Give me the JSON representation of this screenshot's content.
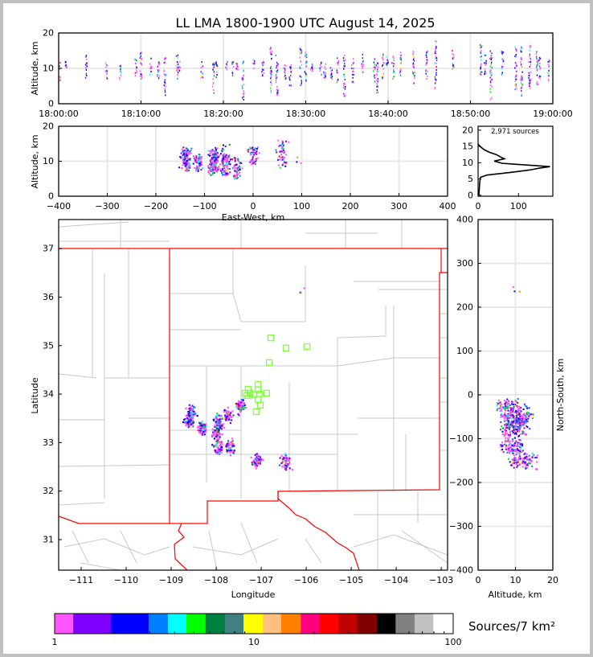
{
  "title": "LL LMA 1800-1900 UTC August 14, 2025",
  "labels": {
    "top_ylabel": "Altitude, km",
    "ew_ylabel": "Altitude, km",
    "ew_xlabel": "East-West, km",
    "map_xlabel": "Longitude",
    "map_ylabel": "Latitude",
    "ns_ylabel": "North-South, km",
    "ns_xlabel": "Altitude, km",
    "hist_annotation": "2,971 sources",
    "colorbar_label": "Sources/7 km²"
  },
  "chart_data": [
    {
      "type": "scatter",
      "panel": "time-height",
      "ylabel": "Altitude, km",
      "ylim": [
        0,
        20
      ],
      "xlim": [
        "18:00:00",
        "19:00:00"
      ],
      "xticks": [
        "18:00:00",
        "18:10:00",
        "18:20:00",
        "18:30:00",
        "18:40:00",
        "18:50:00",
        "19:00:00"
      ],
      "yticks": [
        "0",
        "10",
        "20"
      ],
      "grid": true,
      "columns_minute_zmin_zmax": [
        [
          0.1,
          6,
          12
        ],
        [
          0.9,
          10,
          13
        ],
        [
          3.4,
          7,
          14
        ],
        [
          5.8,
          7,
          12
        ],
        [
          7.5,
          7,
          11
        ],
        [
          9.4,
          7,
          13
        ],
        [
          10,
          7,
          15
        ],
        [
          11.2,
          8,
          13
        ],
        [
          12.1,
          7,
          13
        ],
        [
          12.9,
          2,
          13
        ],
        [
          14.4,
          7,
          14
        ],
        [
          14.7,
          9,
          12
        ],
        [
          17.4,
          7,
          12
        ],
        [
          18.8,
          3,
          12
        ],
        [
          19.2,
          7,
          12
        ],
        [
          20.4,
          9,
          12
        ],
        [
          21.1,
          8,
          12
        ],
        [
          21.7,
          9,
          13
        ],
        [
          22.4,
          1,
          13
        ],
        [
          23.7,
          10,
          13
        ],
        [
          24.8,
          7,
          12
        ],
        [
          25.8,
          3,
          16
        ],
        [
          26.5,
          2,
          14
        ],
        [
          27.5,
          7,
          12
        ],
        [
          28.1,
          5,
          11
        ],
        [
          29.4,
          5,
          16
        ],
        [
          30,
          5,
          15
        ],
        [
          30.7,
          9,
          12
        ],
        [
          31.8,
          8,
          12
        ],
        [
          32.3,
          7,
          12
        ],
        [
          33.1,
          6,
          11
        ],
        [
          33.9,
          6,
          13
        ],
        [
          34.7,
          1,
          14
        ],
        [
          35.7,
          6,
          13
        ],
        [
          36.9,
          8,
          14
        ],
        [
          38.3,
          6,
          13
        ],
        [
          38.7,
          2,
          12
        ],
        [
          39.4,
          7,
          14
        ],
        [
          39.9,
          9,
          15
        ],
        [
          40.6,
          7,
          15
        ],
        [
          41.5,
          8,
          15
        ],
        [
          43.1,
          5,
          15
        ],
        [
          44.7,
          7,
          15
        ],
        [
          45.8,
          4,
          18
        ],
        [
          47.9,
          9,
          15
        ],
        [
          51.3,
          8,
          17
        ],
        [
          51.8,
          8,
          14
        ],
        [
          52.5,
          1,
          15
        ],
        [
          53.9,
          8,
          15
        ],
        [
          55.5,
          4,
          16
        ],
        [
          56.2,
          1,
          16
        ],
        [
          57.2,
          3,
          17
        ],
        [
          58.1,
          5,
          15
        ],
        [
          58.4,
          7,
          14
        ],
        [
          59.5,
          6,
          13
        ]
      ]
    },
    {
      "type": "scatter",
      "panel": "east-west vs altitude",
      "xlabel": "East-West, km",
      "ylabel": "Altitude, km",
      "xlim": [
        -400,
        400
      ],
      "ylim": [
        0,
        20
      ],
      "xticks": [
        "−400",
        "−300",
        "−200",
        "−100",
        "0",
        "100",
        "200",
        "300",
        "400"
      ],
      "yticks": [
        "0",
        "10",
        "20"
      ],
      "grid": true
    },
    {
      "type": "line",
      "panel": "altitude histogram",
      "annotation": "2,971 sources",
      "xlim": [
        0,
        185
      ],
      "ylim": [
        0,
        20
      ],
      "xticks": [
        "0",
        "100"
      ],
      "yticks": [
        "0",
        "5",
        "10",
        "15",
        "20"
      ],
      "profile_alt_count": [
        [
          0,
          2
        ],
        [
          2,
          3
        ],
        [
          4,
          4
        ],
        [
          5.5,
          6
        ],
        [
          6.2,
          22
        ],
        [
          7,
          80
        ],
        [
          7.8,
          130
        ],
        [
          8.3,
          150
        ],
        [
          8.8,
          178
        ],
        [
          9.3,
          120
        ],
        [
          9.8,
          60
        ],
        [
          10.5,
          40
        ],
        [
          11.2,
          65
        ],
        [
          11.8,
          55
        ],
        [
          12.5,
          45
        ],
        [
          13.2,
          28
        ],
        [
          14,
          15
        ],
        [
          15,
          5
        ],
        [
          15.7,
          0
        ]
      ]
    },
    {
      "type": "scatter",
      "panel": "plan view map",
      "xlabel": "Longitude",
      "ylabel": "Latitude",
      "xlim": [
        -111.5,
        -102.86
      ],
      "ylim": [
        30.37,
        37.6
      ],
      "xticks": [
        "−111",
        "−110",
        "−109",
        "−108",
        "−107",
        "−106",
        "−105",
        "−104",
        "−103"
      ],
      "yticks": [
        "31",
        "32",
        "33",
        "34",
        "35",
        "36",
        "37"
      ],
      "source_clusters_lon_lat_zmin_zmax": [
        [
          -108.55,
          33.6,
          7,
          14
        ],
        [
          -108.6,
          33.42,
          8,
          13
        ],
        [
          -108.3,
          33.3,
          7,
          12
        ],
        [
          -107.95,
          33.42,
          7,
          14
        ],
        [
          -108.0,
          33.2,
          6,
          13
        ],
        [
          -107.75,
          33.55,
          6,
          15
        ],
        [
          -107.45,
          33.75,
          5,
          11
        ],
        [
          -107.95,
          32.9,
          7,
          12
        ],
        [
          -107.7,
          32.9,
          6,
          12
        ],
        [
          -107.1,
          32.63,
          9,
          14
        ],
        [
          -106.45,
          32.6,
          8,
          16
        ],
        [
          -106.1,
          36.1,
          9,
          12
        ]
      ],
      "stations_lon_lat": [
        [
          -106.79,
          35.16
        ],
        [
          -106.45,
          34.95
        ],
        [
          -105.98,
          34.98
        ],
        [
          -106.82,
          34.65
        ],
        [
          -107.29,
          34.1
        ],
        [
          -107.07,
          34.2
        ],
        [
          -107.07,
          34.09
        ],
        [
          -107.36,
          34.02
        ],
        [
          -107.25,
          34.02
        ],
        [
          -107.32,
          33.97
        ],
        [
          -107.16,
          33.99
        ],
        [
          -107.04,
          34.0
        ],
        [
          -106.88,
          34.02
        ],
        [
          -107.07,
          33.89
        ],
        [
          -107.02,
          33.77
        ],
        [
          -107.11,
          33.64
        ]
      ],
      "station_color": "#80ff40",
      "state_boundary_color": "#ff0000",
      "county_boundary_color": "#c8c8c8"
    },
    {
      "type": "scatter",
      "panel": "altitude vs north-south",
      "xlabel": "Altitude, km",
      "ylabel": "North-South, km",
      "xlim": [
        0,
        20
      ],
      "ylim": [
        -400,
        400
      ],
      "xticks": [
        "0",
        "10",
        "20"
      ],
      "yticks": [
        "−400",
        "−300",
        "−200",
        "−100",
        "0",
        "100",
        "200",
        "300",
        "400"
      ],
      "grid": true
    }
  ],
  "colorbar": {
    "label": "Sources/7 km²",
    "scale": "log",
    "range": [
      1,
      100
    ],
    "ticks": [
      "1",
      "10",
      "100"
    ],
    "bounds": [
      1,
      1.24,
      1.92,
      2.96,
      3.7,
      4.58,
      5.72,
      7.16,
      8.87,
      11.1,
      13.7,
      17.2,
      21.4,
      26.5,
      33,
      41.4,
      51.4,
      64,
      79.5,
      100
    ],
    "colors": [
      "#ff55ff",
      "#8000ff",
      "#0000ff",
      "#0080ff",
      "#00ffff",
      "#00ff00",
      "#008040",
      "#408080",
      "#ffff00",
      "#ffc080",
      "#ff8000",
      "#ff0080",
      "#ff0000",
      "#c00000",
      "#800000",
      "#000000",
      "#808080",
      "#c0c0c0",
      "#ffffff"
    ]
  }
}
